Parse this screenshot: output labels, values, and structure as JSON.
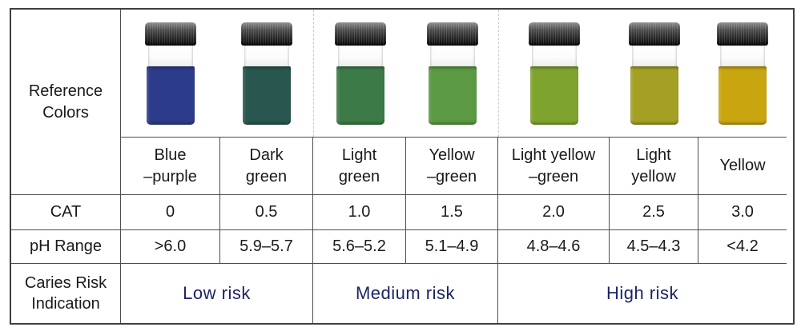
{
  "chart_data": {
    "type": "table",
    "row_headers": {
      "reference_colors": "Reference\nColors",
      "cat": "CAT",
      "ph_range": "pH Range",
      "caries_risk": "Caries Risk\nIndication"
    },
    "columns": [
      {
        "name": "Blue\n–purple",
        "cat": "0",
        "ph": ">6.0",
        "vial_color": "#2c3b8a"
      },
      {
        "name": "Dark\ngreen",
        "cat": "0.5",
        "ph": "5.9–5.7",
        "vial_color": "#29564f"
      },
      {
        "name": "Light\ngreen",
        "cat": "1.0",
        "ph": "5.6–5.2",
        "vial_color": "#3c7a47"
      },
      {
        "name": "Yellow\n–green",
        "cat": "1.5",
        "ph": "5.1–4.9",
        "vial_color": "#5b9a43"
      },
      {
        "name": "Light yellow\n–green",
        "cat": "2.0",
        "ph": "4.8–4.6",
        "vial_color": "#7ea42d"
      },
      {
        "name": "Light\nyellow",
        "cat": "2.5",
        "ph": "4.5–4.3",
        "vial_color": "#a4a023"
      },
      {
        "name": "Yellow",
        "cat": "3.0",
        "ph": "<4.2",
        "vial_color": "#c9a60f"
      }
    ],
    "risk_groups": [
      {
        "label": "Low risk",
        "cat_values": [
          "0",
          "0.5"
        ]
      },
      {
        "label": "Medium risk",
        "cat_values": [
          "1.0",
          "1.5"
        ]
      },
      {
        "label": "High risk",
        "cat_values": [
          "2.0",
          "2.5",
          "3.0"
        ]
      }
    ],
    "colors": {
      "risk_text": "#1b2563",
      "table_border": "#3f3f3f",
      "inner_border": "#4d4d4d",
      "group_divider_dashed": "#c7cbc7"
    }
  }
}
